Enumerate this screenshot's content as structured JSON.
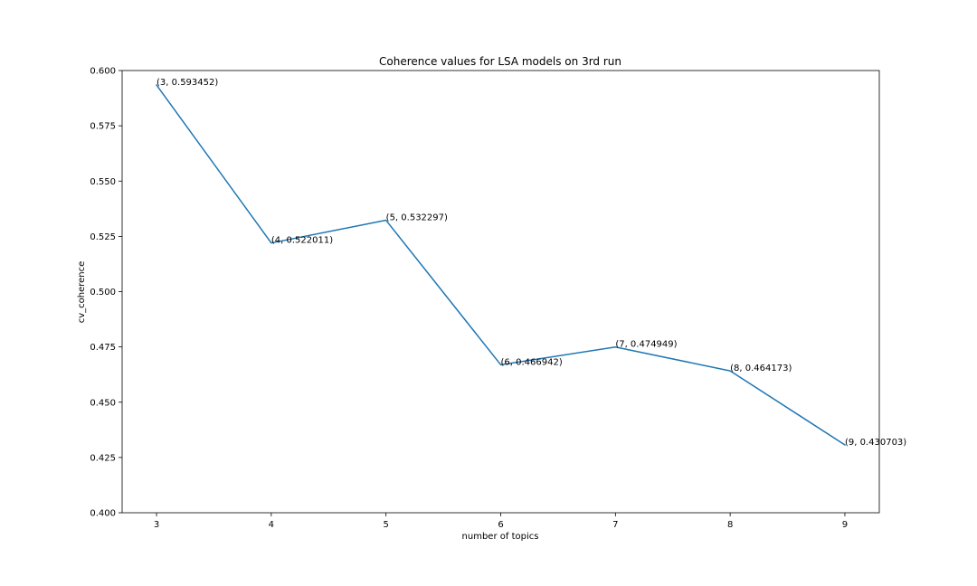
{
  "chart_data": {
    "type": "line",
    "title": "Coherence values for LSA models on 3rd run",
    "xlabel": "number of topics",
    "ylabel": "cv_coherence",
    "x": [
      3,
      4,
      5,
      6,
      7,
      8,
      9
    ],
    "series": [
      {
        "name": "cv_coherence",
        "values": [
          0.593452,
          0.522011,
          0.532297,
          0.466942,
          0.474949,
          0.464173,
          0.430703
        ],
        "color": "#1f77b4"
      }
    ],
    "annotations": [
      "(3, 0.593452)",
      "(4, 0.522011)",
      "(5, 0.532297)",
      "(6, 0.466942)",
      "(7, 0.474949)",
      "(8, 0.464173)",
      "(9, 0.430703)"
    ],
    "xlim": [
      2.7,
      9.3
    ],
    "ylim": [
      0.4,
      0.6
    ],
    "xticks": [
      "3",
      "4",
      "5",
      "6",
      "7",
      "8",
      "9"
    ],
    "yticks": [
      "0.400",
      "0.425",
      "0.450",
      "0.475",
      "0.500",
      "0.525",
      "0.550",
      "0.575",
      "0.600"
    ],
    "grid": false,
    "legend": "none"
  }
}
